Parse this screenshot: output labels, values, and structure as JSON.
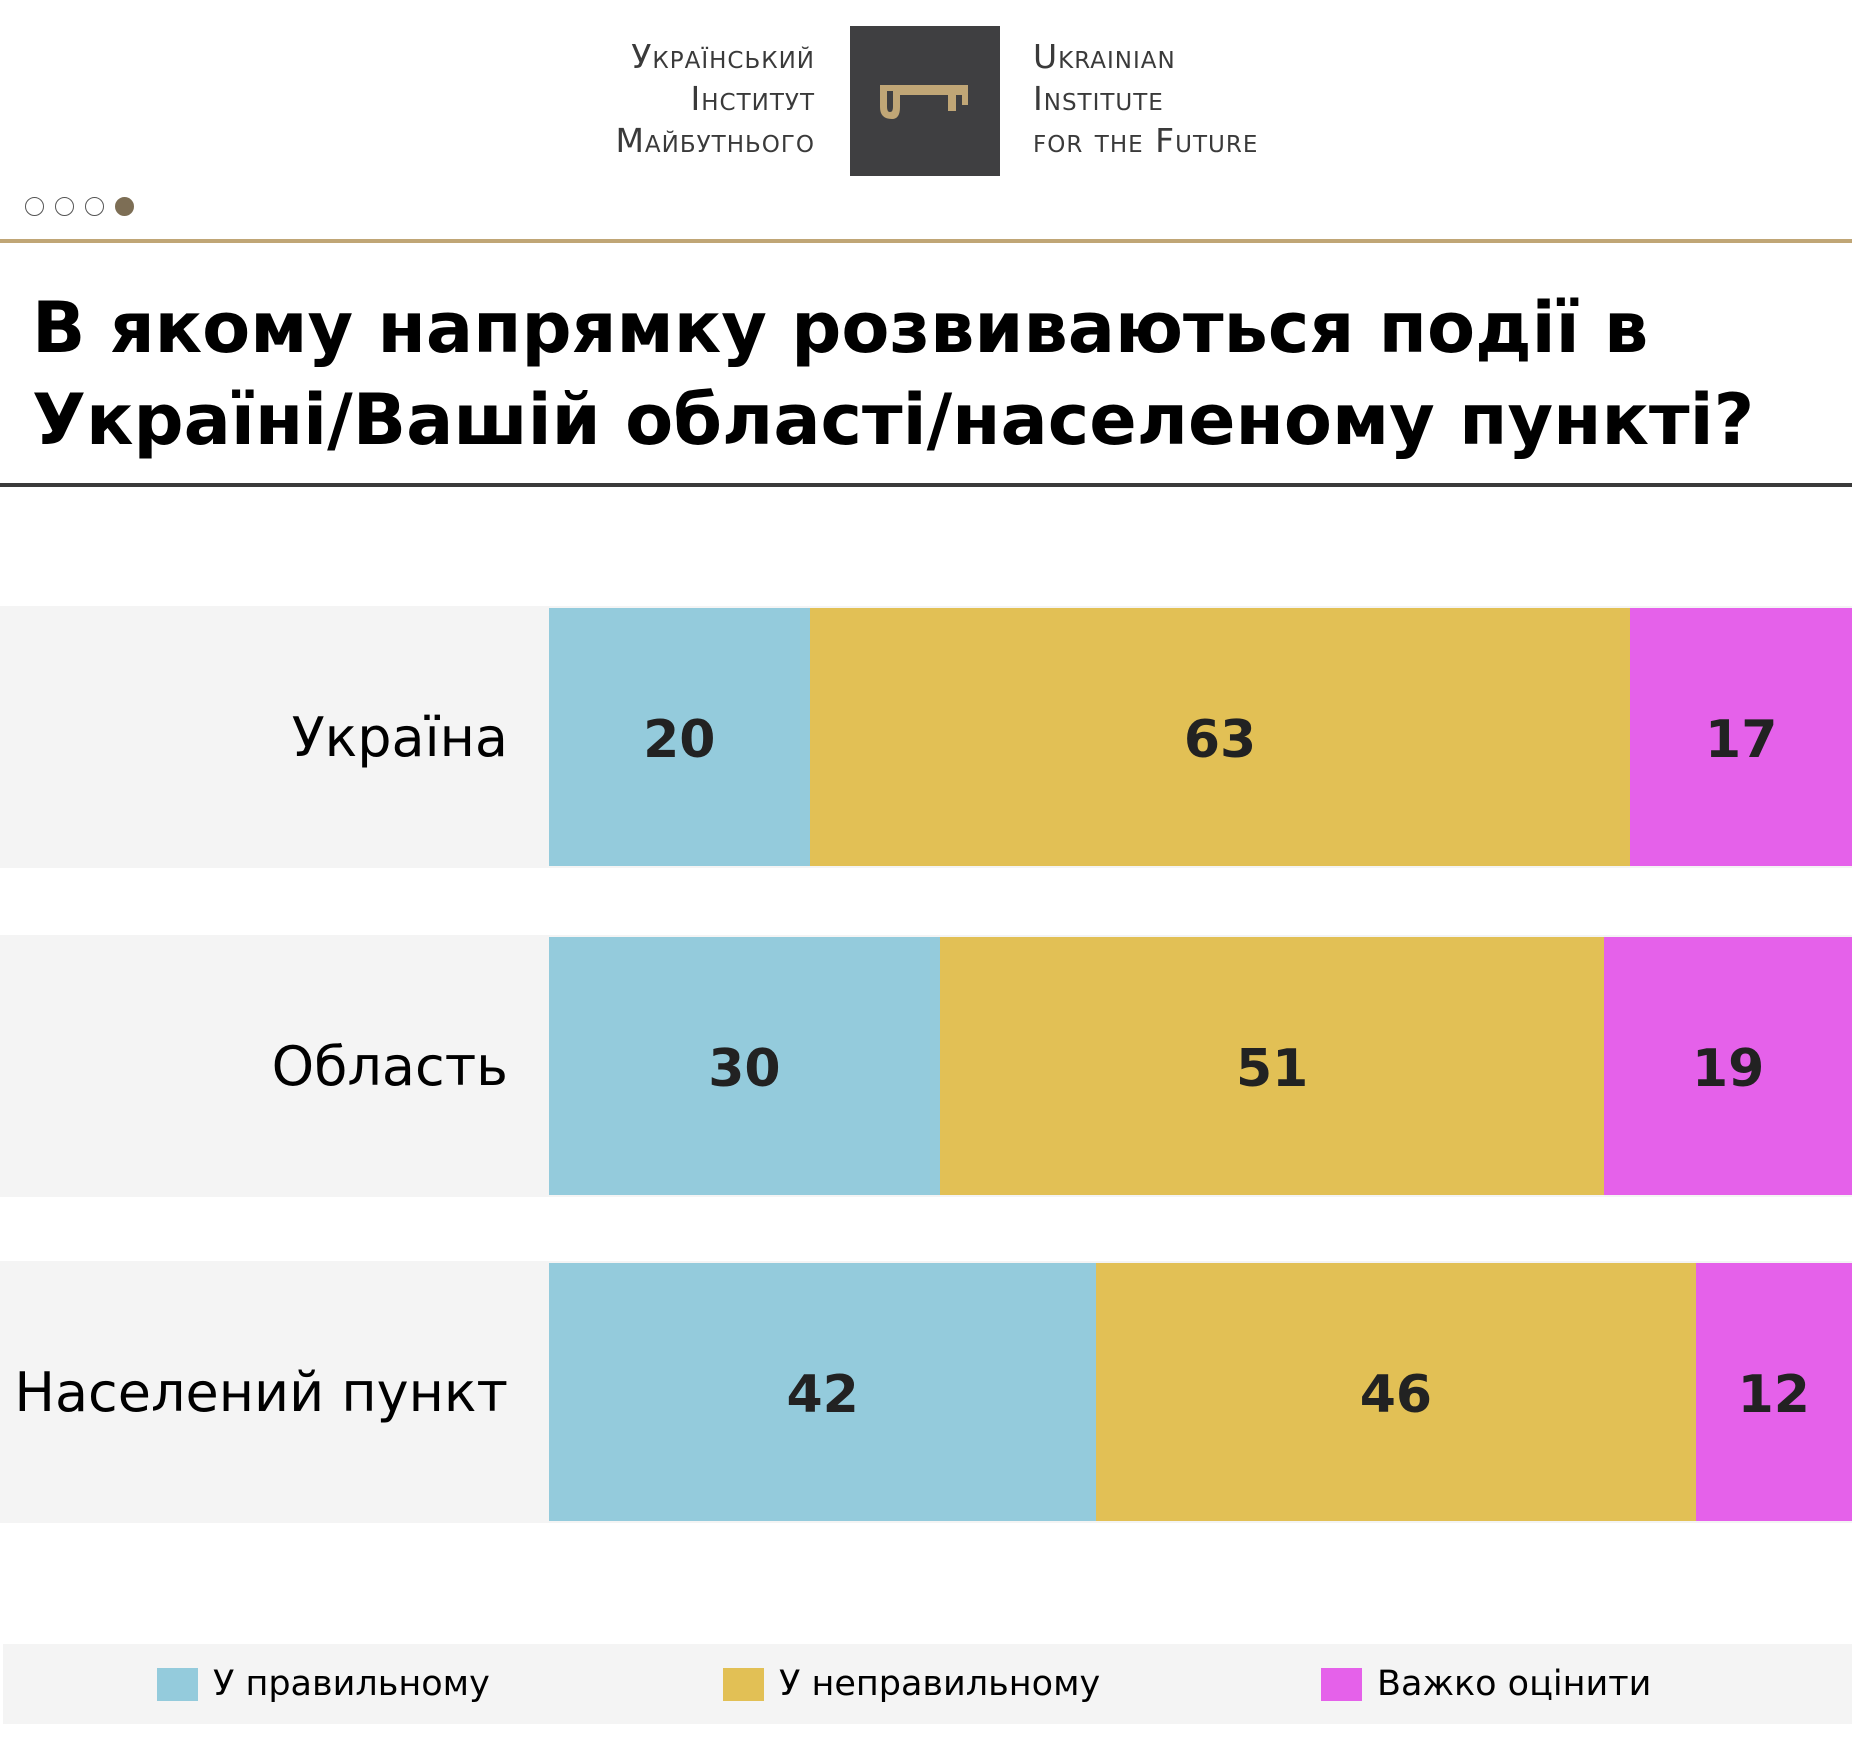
{
  "header": {
    "logo_ua_lines": [
      "Український",
      "Інститут",
      "Майбутнього"
    ],
    "logo_en_lines": [
      "Ukrainian",
      "Institute",
      "for the Future"
    ],
    "logo_icon": "key-icon",
    "pagination": {
      "total": 4,
      "active_index": 3
    }
  },
  "title_lines": [
    "В якому напрямку розвиваються події в",
    "Україні/Вашій області/населеному пункті?"
  ],
  "colors": {
    "positive": "#94cbdc",
    "negative": "#e2c055",
    "hard": "#e561ea",
    "accent": "#c0a676"
  },
  "chart_data": {
    "type": "bar",
    "orientation": "horizontal",
    "stacked": true,
    "title": "В якому напрямку розвиваються події в Україні/Вашій області/населеному пункті?",
    "categories": [
      "Україна",
      "Область",
      "Населений пункт"
    ],
    "series": [
      {
        "name": "У правильному",
        "color": "#94cbdc",
        "values": [
          20,
          30,
          42
        ]
      },
      {
        "name": "У неправильному",
        "color": "#e2c055",
        "values": [
          63,
          51,
          46
        ]
      },
      {
        "name": "Важко оцінити",
        "color": "#e561ea",
        "values": [
          17,
          19,
          12
        ]
      }
    ],
    "xlim": [
      0,
      100
    ],
    "unit": "%",
    "legend_position": "bottom",
    "grid": false
  }
}
